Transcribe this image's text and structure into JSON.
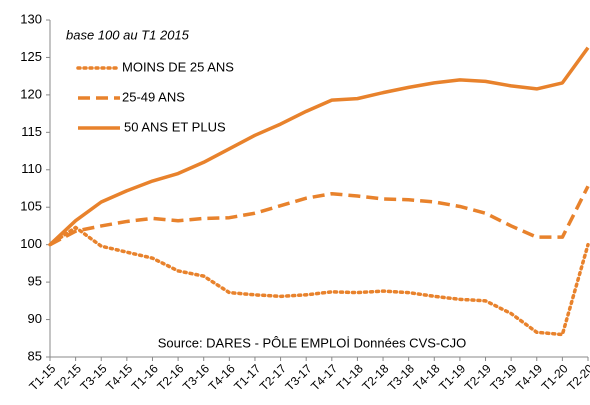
{
  "chart_data": {
    "type": "line",
    "annotations": [
      "base 100  au T1 2015",
      "Source: DARES - PÔLE EMPLOİ Données CVS-CJO"
    ],
    "categories": [
      "T1-15",
      "T2-15",
      "T3-15",
      "T4-15",
      "T1-16",
      "T2-16",
      "T3-16",
      "T4-16",
      "T1-17",
      "T2-17",
      "T3-17",
      "T4-17",
      "T1-18",
      "T2-18",
      "T3-18",
      "T4-18",
      "T1-19",
      "T2-19",
      "T3-19",
      "T4-19",
      "T1-20",
      "T2-20"
    ],
    "series": [
      {
        "name": "MOINS DE 25 ANS",
        "color": "#e8822c",
        "dash": "dotted",
        "values": [
          100,
          102.3,
          99.8,
          99,
          98.2,
          96.5,
          95.8,
          93.6,
          93.3,
          93.1,
          93.3,
          93.7,
          93.6,
          93.8,
          93.6,
          93.1,
          92.7,
          92.5,
          90.8,
          88.3,
          88,
          100
        ]
      },
      {
        "name": "25-49 ANS",
        "color": "#e8822c",
        "dash": "dashed",
        "values": [
          100,
          101.8,
          102.5,
          103.1,
          103.5,
          103.2,
          103.5,
          103.6,
          104.2,
          105.2,
          106.2,
          106.8,
          106.5,
          106.1,
          106,
          105.7,
          105.1,
          104.2,
          102.5,
          101,
          101,
          107.8
        ]
      },
      {
        "name": "50 ANS ET PLUS",
        "color": "#e8822c",
        "dash": "solid",
        "values": [
          100,
          103.2,
          105.7,
          107.2,
          108.5,
          109.5,
          111,
          112.8,
          114.6,
          116.1,
          117.8,
          119.3,
          119.5,
          120.3,
          121,
          121.6,
          122,
          121.8,
          121.2,
          120.8,
          121.6,
          126.3
        ]
      }
    ],
    "ylim": [
      85,
      130
    ],
    "yticks": [
      85,
      90,
      95,
      100,
      105,
      110,
      115,
      120,
      125,
      130
    ],
    "grid": false
  }
}
